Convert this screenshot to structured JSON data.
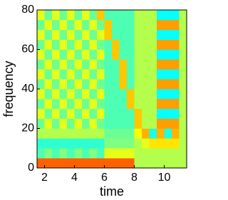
{
  "chart_data": {
    "type": "heatmap",
    "xlabel": "time",
    "ylabel": "frequency",
    "colormap": "jet",
    "zlim": [
      0,
      1
    ],
    "x": [
      1.75,
      2.25,
      2.75,
      3.25,
      3.75,
      4.25,
      4.75,
      5.25,
      5.75,
      6.25,
      6.75,
      7.25,
      7.75,
      8.25,
      8.75,
      9.25,
      9.75,
      10.25,
      10.75,
      11.25
    ],
    "y": [
      2.5,
      7.5,
      12.5,
      17.5,
      22.5,
      27.5,
      32.5,
      37.5,
      42.5,
      47.5,
      52.5,
      57.5,
      62.5,
      67.5,
      72.5,
      77.5
    ],
    "z": [
      [
        0.78,
        0.78,
        0.78,
        0.78,
        0.78,
        0.78,
        0.78,
        0.78,
        0.78,
        0.78,
        0.78,
        0.78,
        0.78,
        0.55,
        0.55,
        0.55,
        0.55,
        0.55,
        0.55,
        0.55
      ],
      [
        0.45,
        0.5,
        0.45,
        0.5,
        0.45,
        0.5,
        0.45,
        0.5,
        0.45,
        0.6,
        0.6,
        0.6,
        0.6,
        0.55,
        0.55,
        0.55,
        0.55,
        0.55,
        0.55,
        0.55
      ],
      [
        0.42,
        0.42,
        0.42,
        0.42,
        0.42,
        0.42,
        0.42,
        0.42,
        0.42,
        0.5,
        0.5,
        0.5,
        0.5,
        0.55,
        0.6,
        0.65,
        0.65,
        0.65,
        0.65,
        0.55
      ],
      [
        0.55,
        0.55,
        0.55,
        0.55,
        0.55,
        0.55,
        0.55,
        0.55,
        0.55,
        0.48,
        0.48,
        0.48,
        0.48,
        0.62,
        0.7,
        0.4,
        0.7,
        0.4,
        0.7,
        0.55
      ],
      [
        0.48,
        0.6,
        0.48,
        0.6,
        0.48,
        0.6,
        0.48,
        0.6,
        0.48,
        0.45,
        0.45,
        0.45,
        0.45,
        0.68,
        0.55,
        0.55,
        0.72,
        0.72,
        0.72,
        0.55
      ],
      [
        0.6,
        0.48,
        0.6,
        0.48,
        0.6,
        0.48,
        0.6,
        0.48,
        0.6,
        0.45,
        0.45,
        0.45,
        0.45,
        0.68,
        0.55,
        0.55,
        0.38,
        0.38,
        0.38,
        0.55
      ],
      [
        0.48,
        0.6,
        0.48,
        0.6,
        0.48,
        0.6,
        0.48,
        0.6,
        0.48,
        0.45,
        0.45,
        0.45,
        0.68,
        0.55,
        0.55,
        0.55,
        0.72,
        0.72,
        0.72,
        0.55
      ],
      [
        0.6,
        0.48,
        0.6,
        0.48,
        0.6,
        0.48,
        0.6,
        0.48,
        0.6,
        0.45,
        0.45,
        0.45,
        0.68,
        0.55,
        0.55,
        0.55,
        0.38,
        0.38,
        0.38,
        0.55
      ],
      [
        0.48,
        0.6,
        0.48,
        0.6,
        0.48,
        0.6,
        0.48,
        0.6,
        0.48,
        0.45,
        0.45,
        0.68,
        0.45,
        0.55,
        0.55,
        0.55,
        0.72,
        0.72,
        0.72,
        0.55
      ],
      [
        0.6,
        0.48,
        0.6,
        0.48,
        0.6,
        0.48,
        0.6,
        0.48,
        0.6,
        0.45,
        0.45,
        0.68,
        0.45,
        0.55,
        0.55,
        0.55,
        0.38,
        0.38,
        0.38,
        0.55
      ],
      [
        0.48,
        0.6,
        0.48,
        0.6,
        0.48,
        0.6,
        0.48,
        0.6,
        0.48,
        0.45,
        0.45,
        0.68,
        0.45,
        0.55,
        0.55,
        0.55,
        0.72,
        0.72,
        0.72,
        0.55
      ],
      [
        0.6,
        0.48,
        0.6,
        0.48,
        0.6,
        0.48,
        0.6,
        0.48,
        0.6,
        0.45,
        0.68,
        0.45,
        0.45,
        0.55,
        0.55,
        0.55,
        0.38,
        0.38,
        0.38,
        0.55
      ],
      [
        0.48,
        0.6,
        0.48,
        0.6,
        0.48,
        0.6,
        0.48,
        0.6,
        0.48,
        0.45,
        0.68,
        0.45,
        0.45,
        0.55,
        0.55,
        0.55,
        0.72,
        0.72,
        0.72,
        0.55
      ],
      [
        0.6,
        0.48,
        0.6,
        0.48,
        0.6,
        0.48,
        0.6,
        0.48,
        0.6,
        0.68,
        0.45,
        0.45,
        0.45,
        0.55,
        0.55,
        0.55,
        0.38,
        0.38,
        0.38,
        0.55
      ],
      [
        0.48,
        0.6,
        0.48,
        0.6,
        0.48,
        0.6,
        0.48,
        0.6,
        0.48,
        0.68,
        0.45,
        0.45,
        0.45,
        0.55,
        0.55,
        0.55,
        0.72,
        0.72,
        0.72,
        0.55
      ],
      [
        0.6,
        0.48,
        0.6,
        0.48,
        0.6,
        0.48,
        0.6,
        0.48,
        0.68,
        0.45,
        0.45,
        0.45,
        0.45,
        0.55,
        0.55,
        0.55,
        0.38,
        0.38,
        0.38,
        0.55
      ]
    ],
    "xlim": [
      1.5,
      11.5
    ],
    "xticks": [
      2,
      4,
      6,
      8,
      10
    ],
    "ylim": [
      0,
      80
    ],
    "yticks": [
      0,
      20,
      40,
      60,
      80
    ]
  }
}
